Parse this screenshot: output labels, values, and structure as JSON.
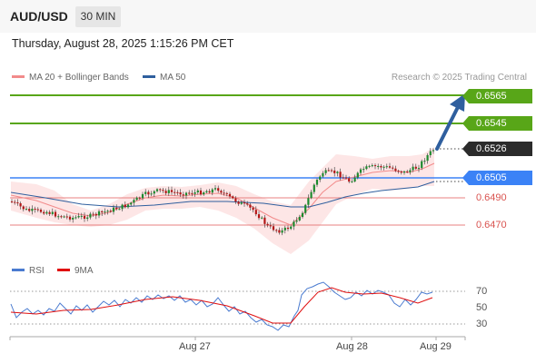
{
  "header": {
    "symbol": "AUD/USD",
    "timeframe": "30 MIN"
  },
  "datetime": "Thursday, August 28, 2025 1:15:26 PM CET",
  "legend": {
    "ma20_label": "MA 20 + Bollinger Bands",
    "ma50_label": "MA 50",
    "ma20_color": "#f28b8b",
    "ma50_color": "#2f5f9e",
    "credit": "Research © 2025 Trading Central"
  },
  "levels": {
    "target2": "0.6565",
    "target1": "0.6545",
    "current": "0.6526",
    "pivot": "0.6505",
    "support1": "0.6490",
    "support2": "0.6470"
  },
  "rsi_legend": {
    "rsi_label": "RSI",
    "ma_label": "9MA",
    "rsi_color": "#4a7bd0",
    "ma_color": "#e01010"
  },
  "rsi_levels": {
    "upper": "70",
    "mid": "50",
    "lower": "30"
  },
  "dates": {
    "d1": "Aug 27",
    "d2": "Aug 28",
    "d3": "Aug 29"
  },
  "colors": {
    "target": "#58a618",
    "pivot": "#3b82f6",
    "current": "#2b2b2b",
    "support": "#e06060",
    "arrow": "#2f5f9e"
  }
}
